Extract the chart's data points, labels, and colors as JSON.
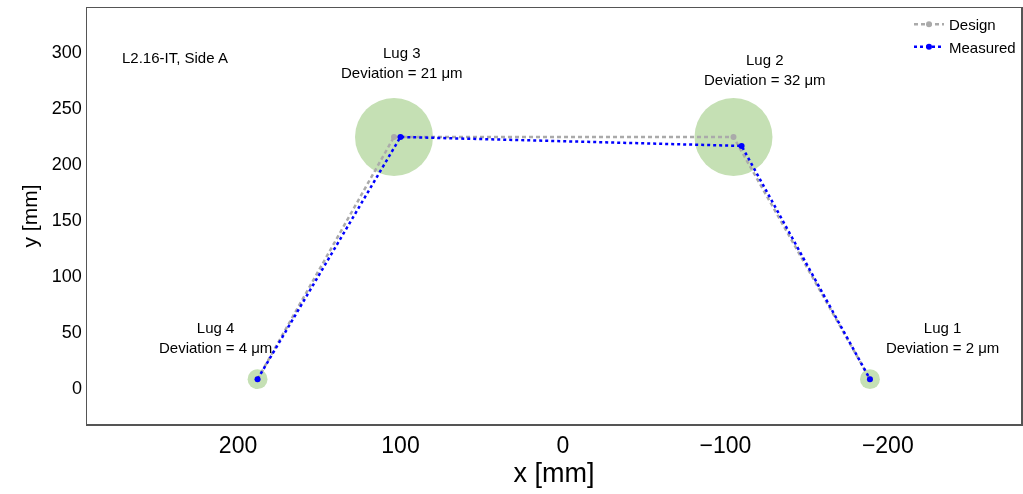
{
  "chart_data": {
    "type": "line",
    "xlabel": "x [mm]",
    "ylabel": "y [mm]",
    "xlim": [
      293,
      -282
    ],
    "ylim": [
      -32,
      339
    ],
    "xticks": [
      200,
      100,
      0,
      {
        "value": -100,
        "label": "−100"
      },
      {
        "value": -200,
        "label": "−200"
      }
    ],
    "yticks": [
      0,
      50,
      100,
      150,
      200,
      250,
      300
    ],
    "grid": false,
    "legend": "top right",
    "series": [
      {
        "type": "bubble",
        "color": "#c5e0b4",
        "x": [
          188,
          104,
          -105,
          -189
        ],
        "values": [
          8,
          224,
          224,
          8
        ],
        "sizes": [
          0.065,
          1,
          1,
          0.065
        ]
      },
      {
        "name": "Design",
        "color": "#aaaaaa",
        "line_style": "dashed",
        "marker": "circle",
        "x": [
          188,
          104,
          -105,
          -189
        ],
        "values": [
          8,
          224,
          224,
          8
        ]
      },
      {
        "name": "Measured",
        "color": "#0000ff",
        "line_style": "dotted",
        "marker": "circle",
        "x": [
          188,
          100,
          -110,
          -189
        ],
        "values": [
          8,
          224,
          216,
          8
        ]
      }
    ],
    "annotations": [
      "L2.16-IT, Side A",
      "Lug 4\nDeviation = 4 μm",
      "Lug 3\nDeviation = 21 μm",
      "Lug 2\nDeviation = 32 μm",
      "Lug 1\nDeviation = 2 μm"
    ]
  }
}
